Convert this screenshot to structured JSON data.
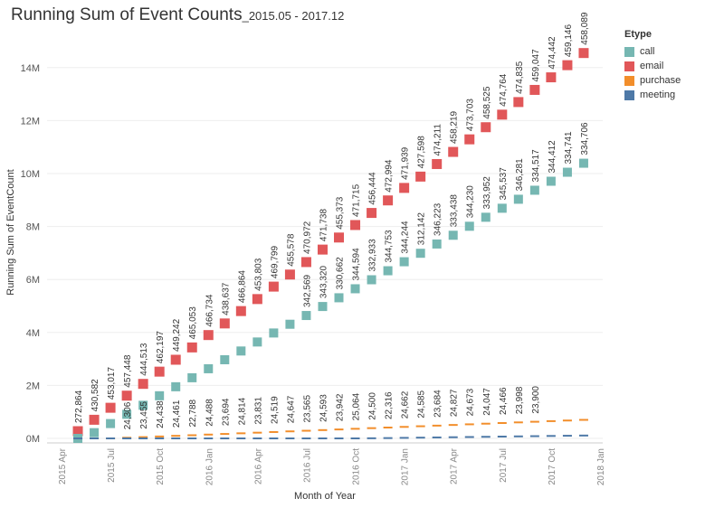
{
  "title": "Running Sum of Event Counts",
  "subtitle": "_2015.05 - 2017.12",
  "legend": {
    "title": "Etype",
    "items": [
      {
        "label": "call",
        "color": "#76b7b2"
      },
      {
        "label": "email",
        "color": "#e15759"
      },
      {
        "label": "purchase",
        "color": "#f28e2b"
      },
      {
        "label": "meeting",
        "color": "#4e79a7"
      }
    ]
  },
  "chart_data": {
    "type": "line",
    "title": "Running Sum of Event Counts_2015.05 - 2017.12",
    "xlabel": "Month of Year",
    "ylabel": "Running Sum of EventCount",
    "x": [
      "2015-05",
      "2015-06",
      "2015-07",
      "2015-08",
      "2015-09",
      "2015-10",
      "2015-11",
      "2015-12",
      "2016-01",
      "2016-02",
      "2016-03",
      "2016-04",
      "2016-05",
      "2016-06",
      "2016-07",
      "2016-08",
      "2016-09",
      "2016-10",
      "2016-11",
      "2016-12",
      "2017-01",
      "2017-02",
      "2017-03",
      "2017-04",
      "2017-05",
      "2017-06",
      "2017-07",
      "2017-08",
      "2017-09",
      "2017-10",
      "2017-11",
      "2017-12"
    ],
    "x_ticks": [
      "2015 Apr",
      "2015 Jul",
      "2015 Oct",
      "2016 Jan",
      "2016 Apr",
      "2016 Jul",
      "2016 Oct",
      "2017 Jan",
      "2017 Apr",
      "2017 Jul",
      "2017 Oct",
      "2018 Jan"
    ],
    "y_ticks": [
      "0M",
      "2M",
      "4M",
      "6M",
      "8M",
      "10M",
      "12M",
      "14M"
    ],
    "ylim": [
      0,
      15000000
    ],
    "series": [
      {
        "name": "email",
        "color": "#e15759",
        "marker": "square",
        "values": [
          272864,
          703446,
          1156463,
          1613911,
          2058424,
          2520621,
          2969863,
          3434916,
          3901650,
          4340287,
          4807151,
          5260954,
          5730753,
          6186331,
          6657303,
          7129041,
          7584414,
          8056129,
          8512573,
          8985567,
          9457506,
          9885104,
          10359315,
          10817534,
          11291237,
          11749762,
          12224526,
          12699361,
          13158408,
          13632850,
          14091996,
          14550085
        ],
        "labels": [
          "272,864",
          "430,582",
          "453,017",
          "457,448",
          "444,513",
          "462,197",
          "449,242",
          "465,053",
          "466,734",
          "438,637",
          "466,864",
          "453,803",
          "469,799",
          "455,578",
          "470,972",
          "471,738",
          "455,373",
          "471,715",
          "456,444",
          "472,994",
          "471,939",
          "427,598",
          "474,211",
          "458,219",
          "473,703",
          "458,525",
          "474,764",
          "474,835",
          "459,047",
          "474,442",
          "459,146",
          "458,089"
        ]
      },
      {
        "name": "call",
        "color": "#76b7b2",
        "marker": "square",
        "values": [
          0,
          216500,
          560000,
          910000,
          1250000,
          1610000,
          1950000,
          2290000,
          2630000,
          2970000,
          3300000,
          3640000,
          3980000,
          4310000,
          4640000,
          4980000,
          5310000,
          5650000,
          5990000,
          6330000,
          6670000,
          6990000,
          7340000,
          7670000,
          8010000,
          8350000,
          8690000,
          9030000,
          9370000,
          9710000,
          10050000,
          10390000
        ],
        "labels": [
          "",
          "",
          "",
          "",
          "",
          "",
          "",
          "",
          "",
          "",
          "",
          "",
          "",
          "",
          "342,569",
          "343,320",
          "330,662",
          "344,594",
          "332,933",
          "344,753",
          "344,244",
          "312,142",
          "346,223",
          "333,438",
          "344,230",
          "333,952",
          "345,537",
          "346,281",
          "334,517",
          "344,412",
          "334,741",
          "334,706"
        ]
      },
      {
        "name": "purchase",
        "color": "#f28e2b",
        "marker": "line",
        "values": [
          0,
          0,
          0,
          24306,
          47761,
          72199,
          96660,
          119448,
          143936,
          167630,
          192444,
          216275,
          240794,
          265441,
          289006,
          313599,
          337541,
          362605,
          387105,
          409421,
          434083,
          458668,
          482352,
          507179,
          531852,
          555899,
          580365,
          604363,
          628263,
          652000,
          675000,
          700000
        ],
        "labels": [
          "",
          "",
          "",
          "24,306",
          "23,455",
          "24,438",
          "24,461",
          "22,788",
          "24,488",
          "23,694",
          "24,814",
          "23,831",
          "24,519",
          "24,647",
          "23,565",
          "24,593",
          "23,942",
          "25,064",
          "24,500",
          "22,316",
          "24,662",
          "24,585",
          "23,684",
          "24,827",
          "24,673",
          "24,047",
          "24,466",
          "23,998",
          "23,900",
          "",
          "",
          ""
        ]
      },
      {
        "name": "meeting",
        "color": "#4e79a7",
        "marker": "line",
        "values": [
          0,
          0,
          0,
          0,
          0,
          0,
          0,
          0,
          0,
          0,
          0,
          0,
          0,
          0,
          0,
          0,
          0,
          0,
          5000,
          12000,
          20000,
          28000,
          36000,
          44000,
          52000,
          60000,
          68000,
          76000,
          84000,
          92000,
          100000,
          108000
        ],
        "labels": []
      }
    ]
  }
}
